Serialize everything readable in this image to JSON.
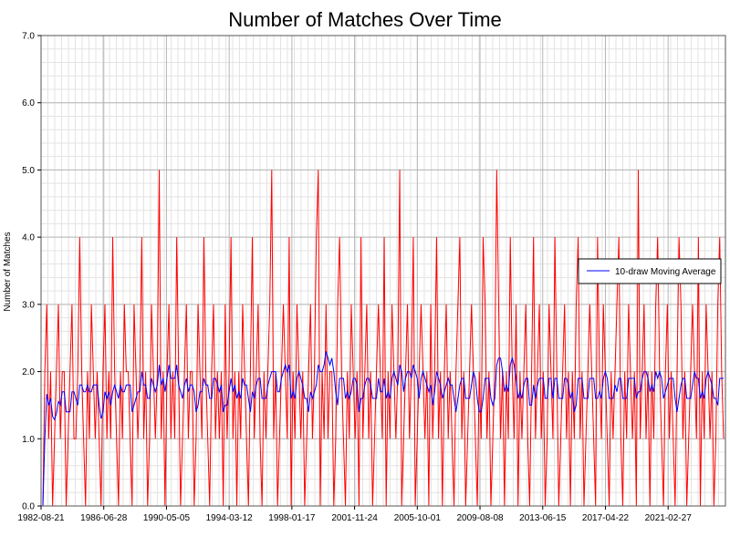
{
  "chart_data": {
    "type": "line",
    "title": "Number of Matches Over Time",
    "xlabel": "",
    "ylabel": "Number of Matches",
    "ylim": [
      0,
      7
    ],
    "xlim": [
      "1982-08-21",
      "2024-09-05"
    ],
    "yticks": [
      "0.0",
      "1.0",
      "2.0",
      "3.0",
      "4.0",
      "5.0",
      "6.0",
      "7.0"
    ],
    "xticks": [
      "1982-08-21",
      "1986-06-28",
      "1990-05-05",
      "1994-03-12",
      "1998-01-17",
      "2001-11-24",
      "2005-10-01",
      "2009-08-08",
      "2013-06-15",
      "2017-04-22",
      "2021-02-27"
    ],
    "grid": true,
    "legend_position": "right",
    "series": [
      {
        "name": "",
        "color": "#ff0000",
        "kind": "per-draw match counts",
        "values": [
          0,
          2,
          3,
          1,
          2,
          0,
          1,
          2,
          3,
          1,
          2,
          2,
          0,
          1,
          2,
          3,
          1,
          1,
          2,
          4,
          2,
          1,
          0,
          2,
          1,
          3,
          2,
          1,
          2,
          1,
          0,
          2,
          3,
          1,
          2,
          1,
          4,
          2,
          1,
          0,
          2,
          1,
          3,
          2,
          2,
          1,
          0,
          3,
          2,
          1,
          2,
          4,
          1,
          2,
          0,
          1,
          3,
          2,
          1,
          2,
          5,
          1,
          2,
          0,
          2,
          3,
          1,
          2,
          1,
          4,
          2,
          0,
          1,
          2,
          3,
          1,
          2,
          2,
          0,
          1,
          3,
          2,
          1,
          4,
          2,
          1,
          0,
          2,
          3,
          1,
          2,
          1,
          2,
          0,
          3,
          1,
          2,
          4,
          1,
          2,
          0,
          2,
          1,
          3,
          2,
          1,
          0,
          2,
          4,
          1,
          2,
          3,
          1,
          0,
          2,
          1,
          2,
          3,
          5,
          1,
          2,
          0,
          1,
          2,
          3,
          2,
          1,
          4,
          0,
          2,
          1,
          3,
          2,
          1,
          2,
          0,
          1,
          2,
          3,
          1,
          2,
          4,
          5,
          0,
          2,
          1,
          3,
          1,
          2,
          2,
          0,
          1,
          3,
          4,
          2,
          1,
          0,
          2,
          1,
          3,
          2,
          1,
          2,
          0,
          4,
          1,
          2,
          3,
          1,
          2,
          0,
          1,
          2,
          3,
          2,
          1,
          4,
          0,
          2,
          1,
          3,
          2,
          1,
          2,
          5,
          0,
          1,
          2,
          3,
          1,
          2,
          4,
          0,
          1,
          2,
          3,
          2,
          1,
          2,
          0,
          3,
          1,
          2,
          4,
          1,
          2,
          0,
          2,
          3,
          1,
          2,
          1,
          0,
          2,
          3,
          4,
          1,
          2,
          0,
          1,
          2,
          3,
          2,
          1,
          0,
          2,
          1,
          4,
          3,
          1,
          2,
          0,
          1,
          2,
          5,
          3,
          1,
          2,
          0,
          2,
          1,
          4,
          2,
          1,
          3,
          0,
          2,
          1,
          2,
          3,
          1,
          0,
          2,
          4,
          1,
          2,
          3,
          1,
          2,
          0,
          1,
          3,
          2,
          1,
          4,
          2,
          0,
          1,
          2,
          3,
          1,
          2,
          0,
          2,
          1,
          3,
          4,
          1,
          2,
          0,
          1,
          2,
          3,
          2,
          1,
          0,
          4,
          2,
          1,
          3,
          2,
          1,
          0,
          2,
          1,
          2,
          3,
          4,
          1,
          0,
          2,
          1,
          3,
          2,
          1,
          2,
          0,
          5,
          1,
          2,
          3,
          1,
          2,
          0,
          2,
          1,
          3,
          4,
          2,
          1,
          0,
          2,
          3,
          1,
          2,
          1,
          0,
          2,
          4,
          3,
          1,
          2,
          0,
          1,
          2,
          3,
          2,
          1,
          4,
          0,
          2,
          1,
          3,
          2,
          1,
          2,
          0,
          1,
          3,
          4,
          2,
          1
        ]
      },
      {
        "name": "10-draw Moving Average",
        "color": "#0000ff",
        "kind": "10-draw moving average"
      }
    ]
  }
}
